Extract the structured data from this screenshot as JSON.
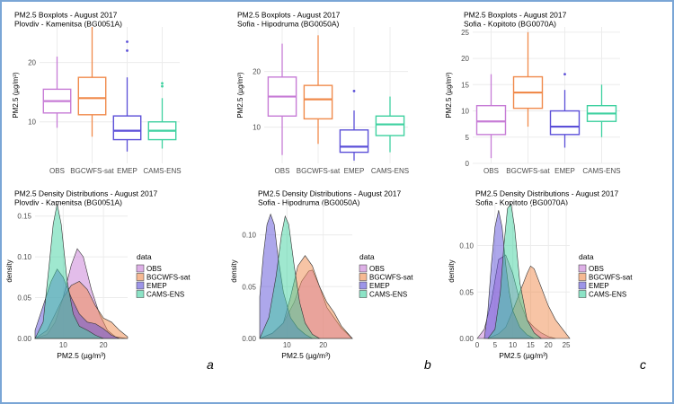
{
  "groups": [
    "OBS",
    "BGCWFS-sat",
    "EMEP",
    "CAMS-ENS"
  ],
  "colors": {
    "OBS": "#c77cd6",
    "BGCWFS-sat": "#f08a4b",
    "EMEP": "#5b4fd8",
    "CAMS-ENS": "#3fd1a0",
    "grid": "#ececec",
    "axis_text": "#4d4d4d",
    "frame_border": "#7aa6d6"
  },
  "legend": {
    "title": "data"
  },
  "chart_data": [
    {
      "type": "box",
      "panel": "a",
      "title": "PM2.5 Boxplots - August 2017",
      "subtitle": "Plovdiv - Kamenitsa (BG0051A)",
      "ylabel": "PM2.5 (µg/m³)",
      "ylim": [
        3,
        26
      ],
      "yticks": [
        10,
        20
      ],
      "categories": [
        "OBS",
        "BGCWFS-sat",
        "EMEP",
        "CAMS-ENS"
      ],
      "boxes": [
        {
          "name": "OBS",
          "min": 9,
          "q1": 11.5,
          "median": 13.5,
          "q3": 15.5,
          "max": 21,
          "outliers": []
        },
        {
          "name": "BGCWFS-sat",
          "min": 7.5,
          "q1": 11.2,
          "median": 14,
          "q3": 17.5,
          "max": 26,
          "outliers": []
        },
        {
          "name": "EMEP",
          "min": 5,
          "q1": 7,
          "median": 8.5,
          "q3": 11,
          "max": 17.5,
          "outliers": [
            22,
            23.5
          ]
        },
        {
          "name": "CAMS-ENS",
          "min": 5.5,
          "q1": 7,
          "median": 8.5,
          "q3": 10,
          "max": 14,
          "outliers": [
            16,
            16.5
          ]
        }
      ]
    },
    {
      "type": "box",
      "panel": "b",
      "title": "PM2.5 Boxplots - August 2017",
      "subtitle": "Sofia - Hipodruma (BG0050A)",
      "ylabel": "PM2.5 (µg/m³)",
      "ylim": [
        3.5,
        28
      ],
      "yticks": [
        10,
        20
      ],
      "categories": [
        "OBS",
        "BGCWFS-sat",
        "EMEP",
        "CAMS-ENS"
      ],
      "boxes": [
        {
          "name": "OBS",
          "min": 5,
          "q1": 12,
          "median": 15.5,
          "q3": 19,
          "max": 25,
          "outliers": []
        },
        {
          "name": "BGCWFS-sat",
          "min": 7,
          "q1": 11.5,
          "median": 15,
          "q3": 17.5,
          "max": 26.5,
          "outliers": []
        },
        {
          "name": "EMEP",
          "min": 4,
          "q1": 5.5,
          "median": 6.5,
          "q3": 9.5,
          "max": 13,
          "outliers": [
            16.5
          ]
        },
        {
          "name": "CAMS-ENS",
          "min": 5.5,
          "q1": 8.5,
          "median": 10.5,
          "q3": 12,
          "max": 15.5,
          "outliers": []
        }
      ]
    },
    {
      "type": "box",
      "panel": "c",
      "title": "PM2.5 Boxplots - August 2017",
      "subtitle": "Sofia - Kopitoto (BG0070A)",
      "ylabel": "PM2.5 (µg/m³)",
      "ylim": [
        0,
        26
      ],
      "yticks": [
        0,
        5,
        10,
        15,
        20,
        25
      ],
      "categories": [
        "OBS",
        "BGCWFS-sat",
        "EMEP",
        "CAMS-ENS"
      ],
      "boxes": [
        {
          "name": "OBS",
          "min": 1,
          "q1": 5.5,
          "median": 8,
          "q3": 11,
          "max": 17,
          "outliers": []
        },
        {
          "name": "BGCWFS-sat",
          "min": 7,
          "q1": 10.5,
          "median": 13.5,
          "q3": 16.5,
          "max": 25,
          "outliers": []
        },
        {
          "name": "EMEP",
          "min": 3,
          "q1": 5.5,
          "median": 7,
          "q3": 10,
          "max": 14,
          "outliers": [
            17
          ]
        },
        {
          "name": "CAMS-ENS",
          "min": 5,
          "q1": 8,
          "median": 9.5,
          "q3": 11,
          "max": 15,
          "outliers": []
        }
      ]
    },
    {
      "type": "area",
      "panel": "a",
      "title": "PM2.5 Density Distributions - August 2017",
      "subtitle": "Plovdiv - Kamenitsa (BG0051A)",
      "xlabel": "PM2.5 (µg/m³)",
      "ylabel": "density",
      "xlim": [
        3,
        26
      ],
      "ylim": [
        0,
        0.165
      ],
      "xticks": [
        10,
        20
      ],
      "yticks": [
        0.0,
        0.05,
        0.1,
        0.15
      ],
      "ytick_labels": [
        "0.00",
        "0.05",
        "0.10",
        "0.15"
      ],
      "series": [
        {
          "name": "OBS",
          "x": [
            3,
            6,
            8,
            10,
            12,
            13.5,
            15,
            17,
            19,
            21,
            23,
            26
          ],
          "y": [
            0,
            0.005,
            0.02,
            0.05,
            0.09,
            0.11,
            0.1,
            0.06,
            0.03,
            0.01,
            0.002,
            0
          ]
        },
        {
          "name": "BGCWFS-sat",
          "x": [
            3,
            6,
            8,
            10,
            12,
            14,
            16,
            18,
            20,
            22,
            24,
            26
          ],
          "y": [
            0,
            0.01,
            0.03,
            0.05,
            0.065,
            0.07,
            0.06,
            0.04,
            0.025,
            0.02,
            0.01,
            0.002
          ]
        },
        {
          "name": "EMEP",
          "x": [
            3,
            5,
            7,
            8.5,
            10,
            12,
            14,
            16,
            18,
            20,
            22,
            24
          ],
          "y": [
            0.01,
            0.04,
            0.07,
            0.085,
            0.075,
            0.05,
            0.03,
            0.02,
            0.018,
            0.012,
            0.004,
            0
          ]
        },
        {
          "name": "CAMS-ENS",
          "x": [
            3,
            5,
            6.5,
            7.5,
            8.5,
            9.5,
            11,
            12.5,
            14,
            16,
            18,
            20
          ],
          "y": [
            0,
            0.02,
            0.09,
            0.14,
            0.165,
            0.14,
            0.07,
            0.03,
            0.015,
            0.01,
            0.004,
            0
          ]
        }
      ]
    },
    {
      "type": "area",
      "panel": "b",
      "title": "PM2.5 Density Distributions - August 2017",
      "subtitle": "Sofia - Hipodruma (BG0050A)",
      "xlabel": "PM2.5 (µg/m³)",
      "ylabel": "density",
      "xlim": [
        2.5,
        28
      ],
      "ylim": [
        0,
        0.13
      ],
      "xticks": [
        10,
        20
      ],
      "yticks": [
        0.0,
        0.05,
        0.1
      ],
      "ytick_labels": [
        "0.00",
        "0.05",
        "0.10"
      ],
      "series": [
        {
          "name": "OBS",
          "x": [
            2.5,
            6,
            9,
            12,
            14,
            16,
            17,
            19,
            21,
            23,
            25,
            28
          ],
          "y": [
            0,
            0.005,
            0.015,
            0.035,
            0.055,
            0.065,
            0.066,
            0.05,
            0.03,
            0.02,
            0.01,
            0
          ]
        },
        {
          "name": "BGCWFS-sat",
          "x": [
            2.5,
            6,
            9,
            11,
            13,
            15,
            17,
            19,
            21,
            23,
            25,
            28
          ],
          "y": [
            0,
            0.005,
            0.015,
            0.04,
            0.07,
            0.08,
            0.07,
            0.05,
            0.035,
            0.025,
            0.012,
            0
          ]
        },
        {
          "name": "EMEP",
          "x": [
            2.5,
            3.5,
            4.5,
            5.5,
            6.5,
            7.5,
            9,
            11,
            13,
            15,
            17
          ],
          "y": [
            0.04,
            0.08,
            0.11,
            0.12,
            0.11,
            0.08,
            0.045,
            0.02,
            0.01,
            0.004,
            0
          ]
        },
        {
          "name": "CAMS-ENS",
          "x": [
            2.5,
            5,
            7,
            8.5,
            9.5,
            10.5,
            12,
            13.5,
            15,
            17,
            19
          ],
          "y": [
            0,
            0.02,
            0.06,
            0.1,
            0.118,
            0.11,
            0.07,
            0.035,
            0.015,
            0.004,
            0
          ]
        }
      ]
    },
    {
      "type": "area",
      "panel": "c",
      "title": "PM2.5 Density Distributions - August 2017",
      "subtitle": "Sofia - Kopitoto (BG0070A)",
      "xlabel": "PM2.5 (µg/m³)",
      "ylabel": "density",
      "xlim": [
        0,
        26
      ],
      "ylim": [
        0,
        0.145
      ],
      "xticks": [
        0,
        5,
        10,
        15,
        20,
        25
      ],
      "yticks": [
        0.0,
        0.05,
        0.1
      ],
      "ytick_labels": [
        "0.00",
        "0.05",
        "0.10"
      ],
      "series": [
        {
          "name": "OBS",
          "x": [
            0,
            2,
            4,
            6,
            8,
            10,
            12,
            14,
            16,
            18,
            20,
            22
          ],
          "y": [
            0,
            0.01,
            0.04,
            0.085,
            0.09,
            0.07,
            0.04,
            0.02,
            0.012,
            0.006,
            0.002,
            0
          ]
        },
        {
          "name": "BGCWFS-sat",
          "x": [
            3,
            6,
            8,
            10,
            12,
            14,
            15,
            16,
            18,
            20,
            22,
            24,
            26
          ],
          "y": [
            0,
            0.005,
            0.012,
            0.03,
            0.05,
            0.07,
            0.078,
            0.075,
            0.055,
            0.035,
            0.02,
            0.01,
            0
          ]
        },
        {
          "name": "EMEP",
          "x": [
            2,
            3,
            4,
            5,
            6,
            7,
            8,
            9,
            10,
            12,
            14,
            16
          ],
          "y": [
            0,
            0.03,
            0.08,
            0.12,
            0.138,
            0.12,
            0.08,
            0.05,
            0.03,
            0.012,
            0.004,
            0
          ]
        },
        {
          "name": "CAMS-ENS",
          "x": [
            3,
            5,
            6.5,
            7.5,
            8.5,
            9.5,
            10.5,
            12,
            14,
            16,
            18
          ],
          "y": [
            0,
            0.01,
            0.05,
            0.1,
            0.14,
            0.145,
            0.12,
            0.06,
            0.02,
            0.006,
            0
          ]
        }
      ]
    }
  ],
  "panel_letters": [
    "a",
    "b",
    "c"
  ]
}
